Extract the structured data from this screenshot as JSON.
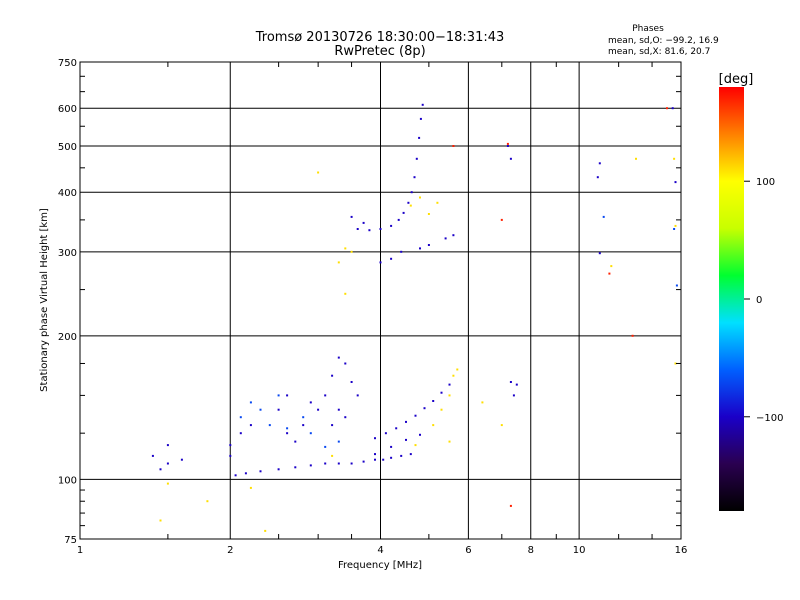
{
  "chart_data": {
    "type": "scatter",
    "title": "Tromsø 20130726 18:30:00−18:31:43",
    "subtitle": "RwPretec (8p)",
    "xlabel": "Frequency [MHz]",
    "ylabel": "Stationary phase Virtual Height [km]",
    "x_scale": "log2",
    "y_scale": "log",
    "xlim": [
      1,
      16
    ],
    "ylim": [
      75,
      750
    ],
    "x_ticks": [
      1,
      2,
      4,
      6,
      8,
      10,
      16
    ],
    "x_tick_labels": [
      "1",
      "2",
      "4",
      "6",
      "8",
      "10",
      "16"
    ],
    "y_ticks": [
      75,
      100,
      200,
      300,
      400,
      500,
      600,
      750
    ],
    "y_tick_labels": [
      "75",
      "100",
      "200",
      "300",
      "400",
      "500",
      "600",
      "750"
    ],
    "grid": true,
    "legend": {
      "title": "Phases",
      "lines": [
        "mean, sd,O: −99.2, 16.9",
        "mean, sd,X:  81.6, 20.7"
      ],
      "position": "top-right"
    },
    "colorbar": {
      "label": "[deg]",
      "range": [
        -180,
        180
      ],
      "ticks": [
        100,
        0,
        -100
      ],
      "tick_labels": [
        "100",
        "0",
        "−100"
      ],
      "colors": [
        "#000000",
        "#2a0050",
        "#1a00c8",
        "#0060ff",
        "#00e0ff",
        "#00ff30",
        "#c8ff00",
        "#ffff00",
        "#ff8000",
        "#ff0000"
      ]
    },
    "series": [
      {
        "phase": -100,
        "points": [
          [
            2.05,
            102
          ],
          [
            2.15,
            103
          ],
          [
            2.3,
            104
          ],
          [
            2.5,
            105
          ],
          [
            2.7,
            106
          ],
          [
            2.9,
            107
          ],
          [
            3.1,
            108
          ],
          [
            3.3,
            108
          ],
          [
            3.5,
            108
          ],
          [
            3.7,
            109
          ],
          [
            3.9,
            110
          ],
          [
            4.05,
            110
          ],
          [
            4.2,
            111
          ],
          [
            4.4,
            112
          ],
          [
            4.6,
            113
          ],
          [
            3.9,
            122
          ],
          [
            4.1,
            125
          ],
          [
            4.3,
            128
          ],
          [
            4.5,
            132
          ],
          [
            4.7,
            136
          ],
          [
            4.9,
            141
          ],
          [
            5.1,
            146
          ],
          [
            5.3,
            152
          ],
          [
            5.5,
            158
          ],
          [
            3.9,
            113
          ],
          [
            4.2,
            117
          ],
          [
            4.5,
            121
          ],
          [
            4.8,
            124
          ],
          [
            3.6,
            335
          ],
          [
            3.8,
            333
          ],
          [
            4.0,
            335
          ],
          [
            4.2,
            340
          ],
          [
            4.35,
            350
          ],
          [
            4.45,
            362
          ],
          [
            4.55,
            380
          ],
          [
            4.62,
            400
          ],
          [
            4.68,
            430
          ],
          [
            4.73,
            470
          ],
          [
            4.78,
            520
          ],
          [
            4.82,
            570
          ],
          [
            4.86,
            610
          ],
          [
            3.5,
            355
          ],
          [
            3.7,
            345
          ],
          [
            4.0,
            285
          ],
          [
            4.2,
            290
          ],
          [
            4.4,
            300
          ],
          [
            5.4,
            320
          ],
          [
            5.6,
            325
          ],
          [
            4.8,
            305
          ],
          [
            5.0,
            310
          ],
          [
            3.1,
            150
          ],
          [
            3.2,
            165
          ],
          [
            3.3,
            180
          ],
          [
            3.4,
            175
          ],
          [
            3.5,
            160
          ],
          [
            3.6,
            150
          ],
          [
            3.3,
            140
          ],
          [
            3.4,
            135
          ],
          [
            3.2,
            130
          ],
          [
            2.6,
            125
          ],
          [
            2.7,
            120
          ],
          [
            2.8,
            130
          ],
          [
            2.9,
            145
          ],
          [
            3.0,
            140
          ],
          [
            2.5,
            140
          ],
          [
            2.6,
            150
          ],
          [
            2.0,
            118
          ],
          [
            2.1,
            125
          ],
          [
            2.2,
            130
          ],
          [
            2.0,
            112
          ],
          [
            1.6,
            110
          ],
          [
            1.5,
            108
          ],
          [
            1.45,
            105
          ],
          [
            1.4,
            112
          ],
          [
            1.5,
            118
          ],
          [
            7.3,
            160
          ],
          [
            7.5,
            158
          ],
          [
            7.4,
            150
          ],
          [
            7.2,
            500
          ],
          [
            7.3,
            470
          ],
          [
            11.0,
            460
          ],
          [
            10.9,
            430
          ],
          [
            15.4,
            600
          ],
          [
            15.6,
            420
          ],
          [
            11.0,
            298
          ]
        ]
      },
      {
        "phase": -70,
        "points": [
          [
            2.4,
            130
          ],
          [
            2.6,
            128
          ],
          [
            2.8,
            135
          ],
          [
            2.3,
            140
          ],
          [
            2.2,
            145
          ],
          [
            2.5,
            150
          ],
          [
            3.1,
            117
          ],
          [
            3.3,
            120
          ],
          [
            2.1,
            135
          ],
          [
            2.9,
            125
          ],
          [
            11.2,
            355
          ],
          [
            15.5,
            335
          ],
          [
            15.7,
            255
          ]
        ]
      },
      {
        "phase": 110,
        "points": [
          [
            1.5,
            98
          ],
          [
            1.45,
            82
          ],
          [
            1.8,
            90
          ],
          [
            2.2,
            96
          ],
          [
            2.35,
            78
          ],
          [
            3.2,
            112
          ],
          [
            3.3,
            285
          ],
          [
            3.4,
            305
          ],
          [
            3.5,
            300
          ],
          [
            3.4,
            245
          ],
          [
            4.6,
            375
          ],
          [
            4.8,
            390
          ],
          [
            5.0,
            360
          ],
          [
            5.2,
            380
          ],
          [
            5.5,
            150
          ],
          [
            5.6,
            165
          ],
          [
            5.7,
            170
          ],
          [
            5.3,
            140
          ],
          [
            5.1,
            130
          ],
          [
            4.7,
            118
          ],
          [
            6.4,
            145
          ],
          [
            11.6,
            280
          ],
          [
            13.0,
            470
          ],
          [
            15.5,
            470
          ],
          [
            15.6,
            175
          ],
          [
            15.6,
            340
          ],
          [
            3.0,
            440
          ],
          [
            5.5,
            120
          ],
          [
            7.0,
            130
          ]
        ]
      },
      {
        "phase": 170,
        "points": [
          [
            7.2,
            505
          ],
          [
            7.0,
            350
          ],
          [
            7.3,
            88
          ],
          [
            5.6,
            500
          ],
          [
            12.8,
            200
          ],
          [
            11.5,
            270
          ],
          [
            15.0,
            600
          ]
        ]
      }
    ]
  }
}
